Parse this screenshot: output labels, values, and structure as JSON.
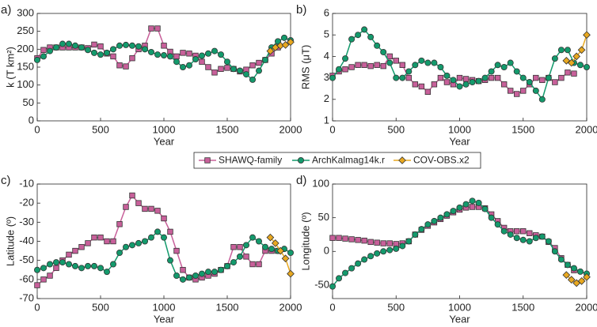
{
  "chart_data": [
    {
      "type": "line",
      "panel_label": "a)",
      "xlabel": "Year",
      "ylabel": "k (T km²)",
      "xlim": [
        0,
        2000
      ],
      "xticks": [
        0,
        500,
        1000,
        1500,
        2000
      ],
      "ylim": [
        0,
        300
      ],
      "yticks": [
        0,
        50,
        100,
        150,
        200,
        250,
        300
      ],
      "series": [
        {
          "name": "SHAWQ-family",
          "color": "#c8609a",
          "marker": "square",
          "x": [
            0,
            50,
            100,
            150,
            200,
            250,
            300,
            350,
            400,
            450,
            500,
            550,
            600,
            650,
            700,
            750,
            800,
            850,
            900,
            950,
            1000,
            1050,
            1100,
            1150,
            1200,
            1250,
            1300,
            1350,
            1400,
            1450,
            1500,
            1550,
            1600,
            1650,
            1700,
            1750,
            1800,
            1850,
            1900
          ],
          "values": [
            175,
            198,
            205,
            205,
            205,
            205,
            205,
            205,
            203,
            213,
            208,
            188,
            180,
            155,
            152,
            175,
            200,
            210,
            258,
            258,
            210,
            193,
            180,
            190,
            188,
            182,
            165,
            150,
            135,
            145,
            148,
            145,
            138,
            143,
            155,
            162,
            170,
            188,
            205
          ]
        },
        {
          "name": "ArchKalmag14k.r",
          "color": "#139a6c",
          "marker": "circle",
          "x": [
            0,
            50,
            100,
            150,
            200,
            250,
            300,
            350,
            400,
            450,
            500,
            550,
            600,
            650,
            700,
            750,
            800,
            850,
            900,
            950,
            1000,
            1050,
            1100,
            1150,
            1200,
            1250,
            1300,
            1350,
            1400,
            1450,
            1500,
            1550,
            1600,
            1650,
            1700,
            1750,
            1800,
            1850,
            1900,
            1950,
            2000
          ],
          "values": [
            170,
            180,
            195,
            205,
            215,
            215,
            210,
            205,
            198,
            190,
            185,
            190,
            200,
            210,
            212,
            210,
            208,
            200,
            192,
            185,
            183,
            180,
            165,
            150,
            155,
            172,
            182,
            188,
            195,
            185,
            165,
            145,
            140,
            130,
            115,
            140,
            170,
            205,
            222,
            232,
            225
          ]
        },
        {
          "name": "COV-OBS.x2",
          "color": "#e8a820",
          "marker": "diamond",
          "x": [
            1840,
            1880,
            1920,
            1960,
            2000
          ],
          "values": [
            195,
            205,
            210,
            212,
            220
          ]
        }
      ]
    },
    {
      "type": "line",
      "panel_label": "b)",
      "xlabel": "Year",
      "ylabel": "RMS (μT)",
      "xlim": [
        0,
        2000
      ],
      "xticks": [
        0,
        500,
        1000,
        1500,
        2000
      ],
      "ylim": [
        1,
        6
      ],
      "yticks": [
        1,
        2,
        3,
        4,
        5,
        6
      ],
      "series": [
        {
          "color": "#c8609a",
          "marker": "square",
          "x": [
            0,
            50,
            100,
            150,
            200,
            250,
            300,
            350,
            400,
            450,
            500,
            550,
            600,
            650,
            700,
            750,
            800,
            850,
            900,
            950,
            1000,
            1050,
            1100,
            1150,
            1200,
            1250,
            1300,
            1350,
            1400,
            1450,
            1500,
            1550,
            1600,
            1650,
            1700,
            1750,
            1800,
            1850,
            1900
          ],
          "values": [
            3.1,
            3.3,
            3.4,
            3.5,
            3.6,
            3.6,
            3.55,
            3.6,
            3.55,
            4.0,
            3.8,
            3.6,
            3.0,
            2.7,
            2.6,
            2.35,
            2.7,
            3.0,
            2.8,
            2.7,
            3.0,
            2.95,
            2.9,
            2.85,
            2.9,
            3.0,
            3.0,
            2.7,
            2.4,
            2.25,
            2.4,
            2.7,
            3.0,
            2.9,
            3.0,
            2.8,
            3.0,
            3.25,
            3.2
          ]
        },
        {
          "color": "#139a6c",
          "marker": "circle",
          "x": [
            0,
            50,
            100,
            150,
            200,
            250,
            300,
            350,
            400,
            450,
            500,
            550,
            600,
            650,
            700,
            750,
            800,
            850,
            900,
            950,
            1000,
            1050,
            1100,
            1150,
            1200,
            1250,
            1300,
            1350,
            1400,
            1450,
            1500,
            1550,
            1600,
            1650,
            1700,
            1750,
            1800,
            1850,
            1900,
            1950,
            2000
          ],
          "values": [
            3.0,
            3.4,
            3.9,
            4.8,
            5.0,
            5.25,
            4.9,
            4.5,
            4.2,
            3.7,
            3.0,
            3.0,
            3.3,
            3.6,
            3.8,
            3.7,
            3.7,
            3.5,
            3.1,
            2.9,
            2.6,
            2.7,
            2.8,
            2.85,
            3.0,
            3.3,
            3.6,
            3.5,
            3.7,
            3.3,
            3.0,
            2.8,
            2.4,
            2.0,
            3.0,
            3.9,
            4.3,
            4.3,
            3.7,
            3.6,
            3.5
          ]
        },
        {
          "color": "#e8a820",
          "marker": "diamond",
          "x": [
            1840,
            1880,
            1920,
            1960,
            2000
          ],
          "values": [
            3.8,
            3.7,
            4.0,
            4.3,
            5.0
          ]
        }
      ]
    },
    {
      "type": "line",
      "panel_label": "c)",
      "xlabel": "Year",
      "ylabel": "Latitude (º)",
      "xlim": [
        0,
        2000
      ],
      "xticks": [
        0,
        500,
        1000,
        1500,
        2000
      ],
      "ylim": [
        -70,
        -10
      ],
      "yticks": [
        -70,
        -60,
        -50,
        -40,
        -30,
        -20,
        -10
      ],
      "series": [
        {
          "color": "#c8609a",
          "marker": "square",
          "x": [
            0,
            50,
            100,
            150,
            200,
            250,
            300,
            350,
            400,
            450,
            500,
            550,
            600,
            650,
            700,
            750,
            800,
            850,
            900,
            950,
            1000,
            1050,
            1100,
            1150,
            1200,
            1250,
            1300,
            1350,
            1400,
            1450,
            1500,
            1550,
            1600,
            1650,
            1700,
            1750,
            1800,
            1850,
            1900
          ],
          "values": [
            -63,
            -60,
            -58,
            -54,
            -50,
            -47,
            -45,
            -43,
            -41,
            -38,
            -38,
            -40,
            -40,
            -31,
            -22,
            -16,
            -20,
            -23,
            -23,
            -24,
            -28,
            -35,
            -45,
            -55,
            -59,
            -60,
            -59,
            -58,
            -57,
            -55,
            -53,
            -43,
            -43,
            -48,
            -52,
            -52,
            -45,
            -45,
            -45
          ]
        },
        {
          "color": "#139a6c",
          "marker": "circle",
          "x": [
            0,
            50,
            100,
            150,
            200,
            250,
            300,
            350,
            400,
            450,
            500,
            550,
            600,
            650,
            700,
            750,
            800,
            850,
            900,
            950,
            1000,
            1050,
            1100,
            1150,
            1200,
            1250,
            1300,
            1350,
            1400,
            1450,
            1500,
            1550,
            1600,
            1650,
            1700,
            1750,
            1800,
            1850,
            1900,
            1950,
            2000
          ],
          "values": [
            -55,
            -54,
            -52,
            -51,
            -51,
            -52,
            -53,
            -54,
            -53,
            -53,
            -54,
            -56,
            -52,
            -46,
            -43,
            -42,
            -41,
            -40,
            -38,
            -35,
            -38,
            -50,
            -58,
            -60,
            -59,
            -58,
            -57,
            -56,
            -56,
            -55,
            -53,
            -51,
            -48,
            -42,
            -38,
            -40,
            -43,
            -44,
            -45,
            -44,
            -46
          ]
        },
        {
          "color": "#e8a820",
          "marker": "diamond",
          "x": [
            1840,
            1880,
            1920,
            1960,
            2000
          ],
          "values": [
            -38,
            -41,
            -45,
            -49,
            -57
          ]
        }
      ]
    },
    {
      "type": "line",
      "panel_label": "d)",
      "xlabel": "Year",
      "ylabel": "Longitude (º)",
      "xlim": [
        0,
        2000
      ],
      "xticks": [
        0,
        500,
        1000,
        1500,
        2000
      ],
      "ylim": [
        -70,
        100
      ],
      "yticks": [
        -50,
        0,
        50,
        100
      ],
      "series": [
        {
          "color": "#c8609a",
          "marker": "square",
          "x": [
            0,
            50,
            100,
            150,
            200,
            250,
            300,
            350,
            400,
            450,
            500,
            550,
            600,
            650,
            700,
            750,
            800,
            850,
            900,
            950,
            1000,
            1050,
            1100,
            1150,
            1200,
            1250,
            1300,
            1350,
            1400,
            1450,
            1500,
            1550,
            1600,
            1650,
            1700,
            1750,
            1800,
            1850,
            1900
          ],
          "values": [
            20,
            20,
            19,
            18,
            17,
            16,
            14,
            13,
            12,
            12,
            11,
            12,
            15,
            25,
            32,
            38,
            43,
            48,
            53,
            58,
            62,
            65,
            66,
            66,
            64,
            55,
            45,
            35,
            30,
            30,
            30,
            27,
            24,
            22,
            14,
            5,
            -10,
            -20,
            -28
          ]
        },
        {
          "color": "#139a6c",
          "marker": "circle",
          "x": [
            0,
            50,
            100,
            150,
            200,
            250,
            300,
            350,
            400,
            450,
            500,
            550,
            600,
            650,
            700,
            750,
            800,
            850,
            900,
            950,
            1000,
            1050,
            1100,
            1150,
            1200,
            1250,
            1300,
            1350,
            1400,
            1450,
            1500,
            1550,
            1600,
            1650,
            1700,
            1750,
            1800,
            1850,
            1900,
            1950,
            2000
          ],
          "values": [
            -52,
            -40,
            -32,
            -25,
            -18,
            -12,
            -7,
            -3,
            0,
            2,
            4,
            8,
            15,
            25,
            33,
            40,
            45,
            50,
            55,
            60,
            65,
            70,
            75,
            72,
            63,
            50,
            40,
            30,
            25,
            20,
            17,
            15,
            20,
            22,
            15,
            0,
            -12,
            -20,
            -25,
            -30,
            -33
          ]
        },
        {
          "color": "#e8a820",
          "marker": "diamond",
          "x": [
            1840,
            1880,
            1920,
            1960,
            2000
          ],
          "values": [
            -35,
            -42,
            -47,
            -44,
            -38
          ]
        }
      ]
    }
  ]
}
